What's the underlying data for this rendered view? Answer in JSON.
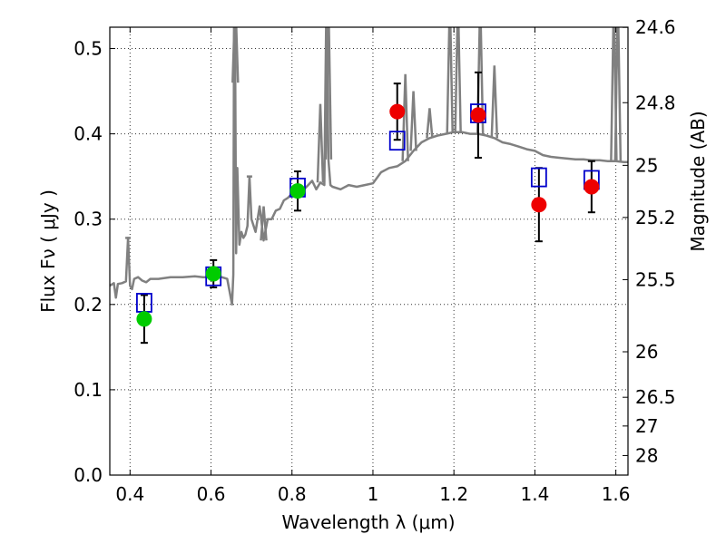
{
  "chart_data": {
    "type": "scatter",
    "title": "",
    "xlabel": "Wavelength  λ (μm)",
    "ylabel": "Flux  Fν  ( μJy )",
    "ylabel_right": "Magnitude (AB)",
    "xlim": [
      0.35,
      1.63
    ],
    "ylim": [
      0.0,
      0.525
    ],
    "grid": true,
    "x_ticks": [
      {
        "value": 0.4,
        "label": "0.4"
      },
      {
        "value": 0.6,
        "label": "0.6"
      },
      {
        "value": 0.8,
        "label": "0.8"
      },
      {
        "value": 1.0,
        "label": "1"
      },
      {
        "value": 1.2,
        "label": "1.2"
      },
      {
        "value": 1.4,
        "label": "1.4"
      },
      {
        "value": 1.6,
        "label": "1.6"
      }
    ],
    "y_ticks": [
      {
        "value": 0.0,
        "label": "0.0"
      },
      {
        "value": 0.1,
        "label": "0.1"
      },
      {
        "value": 0.2,
        "label": "0.2"
      },
      {
        "value": 0.3,
        "label": "0.3"
      },
      {
        "value": 0.4,
        "label": "0.4"
      },
      {
        "value": 0.5,
        "label": "0.5"
      }
    ],
    "y_ticks_right": [
      {
        "value": 24.6,
        "label": "24.6"
      },
      {
        "value": 24.8,
        "label": "24.8"
      },
      {
        "value": 25.0,
        "label": "25"
      },
      {
        "value": 25.2,
        "label": "25.2"
      },
      {
        "value": 25.5,
        "label": "25.5"
      },
      {
        "value": 26.0,
        "label": "26"
      },
      {
        "value": 26.5,
        "label": "26.5"
      },
      {
        "value": 27.0,
        "label": "27"
      },
      {
        "value": 28.0,
        "label": "28"
      }
    ],
    "series": [
      {
        "kind": "model-spectrum",
        "color": "#808080",
        "x": [
          0.35,
          0.36,
          0.365,
          0.37,
          0.38,
          0.39,
          0.395,
          0.4,
          0.405,
          0.41,
          0.42,
          0.43,
          0.44,
          0.45,
          0.47,
          0.5,
          0.53,
          0.56,
          0.58,
          0.6,
          0.62,
          0.64,
          0.65,
          0.652,
          0.655,
          0.657,
          0.659,
          0.662,
          0.665,
          0.67,
          0.675,
          0.68,
          0.685,
          0.69,
          0.695,
          0.7,
          0.71,
          0.72,
          0.73,
          0.74,
          0.75,
          0.76,
          0.77,
          0.78,
          0.79,
          0.8,
          0.81,
          0.82,
          0.83,
          0.84,
          0.85,
          0.86,
          0.87,
          0.88,
          0.885,
          0.89,
          0.895,
          0.9,
          0.92,
          0.94,
          0.96,
          0.98,
          1.0,
          1.02,
          1.04,
          1.06,
          1.08,
          1.1,
          1.12,
          1.14,
          1.16,
          1.18,
          1.2,
          1.22,
          1.24,
          1.26,
          1.28,
          1.3,
          1.32,
          1.34,
          1.36,
          1.38,
          1.4,
          1.42,
          1.44,
          1.46,
          1.48,
          1.5,
          1.52,
          1.54,
          1.56,
          1.58,
          1.6,
          1.62,
          1.63
        ],
        "y": [
          0.222,
          0.225,
          0.208,
          0.224,
          0.225,
          0.227,
          0.278,
          0.222,
          0.218,
          0.23,
          0.232,
          0.228,
          0.226,
          0.23,
          0.23,
          0.232,
          0.232,
          0.233,
          0.232,
          0.232,
          0.233,
          0.23,
          0.205,
          0.2,
          0.235,
          0.56,
          0.56,
          0.26,
          0.36,
          0.27,
          0.285,
          0.278,
          0.282,
          0.292,
          0.35,
          0.3,
          0.285,
          0.315,
          0.275,
          0.3,
          0.3,
          0.31,
          0.312,
          0.322,
          0.325,
          0.33,
          0.335,
          0.338,
          0.335,
          0.34,
          0.345,
          0.335,
          0.343,
          0.34,
          0.56,
          0.37,
          0.34,
          0.338,
          0.335,
          0.34,
          0.338,
          0.34,
          0.342,
          0.355,
          0.36,
          0.362,
          0.368,
          0.38,
          0.39,
          0.395,
          0.398,
          0.4,
          0.402,
          0.402,
          0.4,
          0.4,
          0.398,
          0.395,
          0.39,
          0.388,
          0.385,
          0.382,
          0.38,
          0.375,
          0.373,
          0.372,
          0.371,
          0.37,
          0.37,
          0.369,
          0.369,
          0.368,
          0.368,
          0.367,
          0.367
        ],
        "spikes": [
          {
            "x": 0.395,
            "y": 0.278
          },
          {
            "x": 0.657,
            "y": 0.56
          },
          {
            "x": 0.66,
            "y": 0.56
          },
          {
            "x": 0.695,
            "y": 0.35
          },
          {
            "x": 0.73,
            "y": 0.315
          },
          {
            "x": 0.87,
            "y": 0.435
          },
          {
            "x": 0.89,
            "y": 0.56
          },
          {
            "x": 1.08,
            "y": 0.47
          },
          {
            "x": 1.1,
            "y": 0.45
          },
          {
            "x": 1.14,
            "y": 0.43
          },
          {
            "x": 1.19,
            "y": 0.56
          },
          {
            "x": 1.21,
            "y": 0.56
          },
          {
            "x": 1.265,
            "y": 0.56
          },
          {
            "x": 1.3,
            "y": 0.48
          },
          {
            "x": 1.595,
            "y": 0.56
          },
          {
            "x": 1.605,
            "y": 0.56
          }
        ]
      },
      {
        "kind": "model-photometry",
        "marker": "square",
        "color": "#0000cc",
        "x": [
          0.435,
          0.606,
          0.814,
          1.06,
          1.26,
          1.41,
          1.54
        ],
        "y": [
          0.202,
          0.233,
          0.337,
          0.392,
          0.424,
          0.349,
          0.346
        ]
      },
      {
        "kind": "observed-detections",
        "marker": "circle",
        "color": "#00cc00",
        "x": [
          0.435,
          0.606,
          0.814
        ],
        "y": [
          0.183,
          0.236,
          0.333
        ],
        "yerr": [
          0.028,
          0.016,
          0.023
        ]
      },
      {
        "kind": "observed-detections",
        "marker": "circle",
        "color": "#ee0000",
        "x": [
          1.06,
          1.26,
          1.41,
          1.54
        ],
        "y": [
          0.426,
          0.422,
          0.317,
          0.338
        ],
        "yerr": [
          0.033,
          0.05,
          0.043,
          0.03
        ]
      }
    ]
  }
}
